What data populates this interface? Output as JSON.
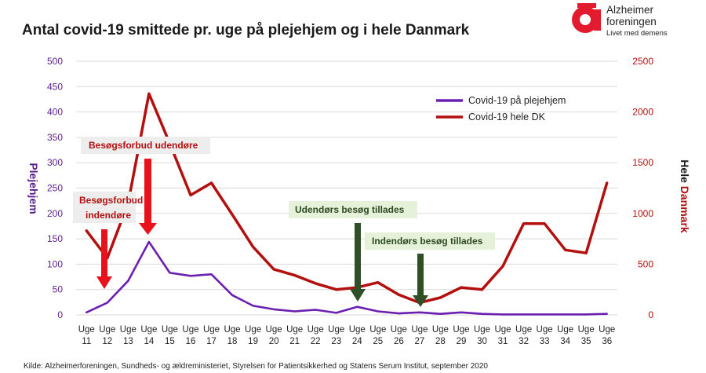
{
  "chart_data": {
    "type": "line",
    "title": "Antal covid-19 smittede pr. uge på plejehjem og i hele Danmark",
    "categories": [
      "Uge 11",
      "Uge 12",
      "Uge 13",
      "Uge 14",
      "Uge 15",
      "Uge 16",
      "Uge 17",
      "Uge 18",
      "Uge 19",
      "Uge 20",
      "Uge 21",
      "Uge 22",
      "Uge 23",
      "Uge 24",
      "Uge 25",
      "Uge 26",
      "Uge 27",
      "Uge 28",
      "Uge 29",
      "Uge 30",
      "Uge 31",
      "Uge 32",
      "Uge 33",
      "Uge 34",
      "Uge 35",
      "Uge 36"
    ],
    "left_axis": {
      "label": "Plejehjem",
      "ylim": [
        0,
        500
      ],
      "ticks": [
        "0",
        "50",
        "100",
        "150",
        "200",
        "250",
        "300",
        "350",
        "400",
        "450",
        "500"
      ]
    },
    "right_axis": {
      "label_part1": "Hele ",
      "label_part2": "Danmark",
      "ylim": [
        0,
        2500
      ],
      "ticks": [
        "0",
        "500",
        "1000",
        "1500",
        "2000",
        "2500"
      ]
    },
    "series": [
      {
        "name": "Covid-19 på plejehjem",
        "axis": "left",
        "color": "#6a1fb0",
        "values": [
          5,
          24,
          67,
          144,
          83,
          77,
          80,
          39,
          18,
          11,
          7,
          10,
          4,
          16,
          7,
          3,
          5,
          2,
          5,
          2,
          1,
          1,
          1,
          1,
          1,
          2
        ]
      },
      {
        "name": "Covid-19 hele DK",
        "axis": "right",
        "color": "#b40f0f",
        "values": [
          830,
          560,
          1100,
          2180,
          1690,
          1180,
          1300,
          990,
          670,
          450,
          390,
          310,
          250,
          270,
          320,
          200,
          120,
          170,
          270,
          250,
          480,
          900,
          900,
          640,
          610,
          1300
        ]
      }
    ],
    "legend_position": "top-right",
    "annotations": [
      {
        "text": "Besøgsforbud udendøre",
        "color": "#b40f0f",
        "arrow_category": "Uge 14"
      },
      {
        "text_line1": "Besøgsforbud",
        "text_line2": "indendøre",
        "color": "#b40f0f",
        "arrow_category": "Uge 12"
      },
      {
        "text": "Udendørs besøg tillades",
        "color": "#2d4a24",
        "arrow_category": "Uge 24"
      },
      {
        "text": "Indendørs besøg tillades",
        "color": "#2d4a24",
        "arrow_category": "Uge 27"
      }
    ],
    "source": "Kilde: Alzheimerforeningen,  Sundheds- og ældreministeriet, Styrelsen for Patientsikkerhed og Statens Serum  Institut, september 2020"
  },
  "logo": {
    "line1": "Alzheimer",
    "line2": "foreningen",
    "tagline": "Livet med demens"
  }
}
